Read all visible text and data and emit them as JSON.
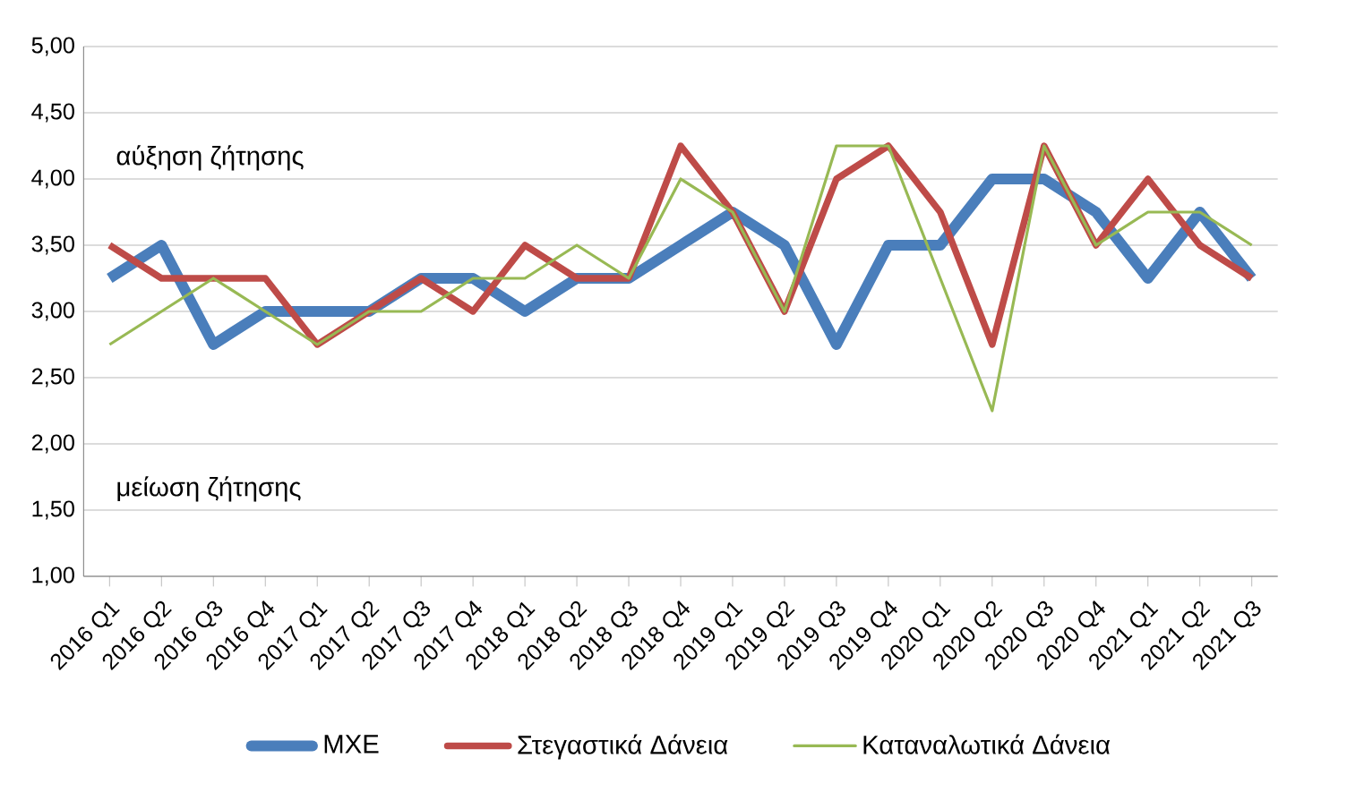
{
  "chart_data": {
    "type": "line",
    "categories": [
      "2016 Q1",
      "2016 Q2",
      "2016 Q3",
      "2016 Q4",
      "2017 Q1",
      "2017 Q2",
      "2017 Q3",
      "2017 Q4",
      "2018 Q1",
      "2018 Q2",
      "2018 Q3",
      "2018 Q4",
      "2019 Q1",
      "2019 Q2",
      "2019 Q3",
      "2019 Q4",
      "2020 Q1",
      "2020 Q2",
      "2020 Q3",
      "2020 Q4",
      "2021 Q1",
      "2021 Q2",
      "2021 Q3"
    ],
    "series": [
      {
        "name": "ΜΧΕ",
        "color": "#4a7ebb",
        "values": [
          3.25,
          3.5,
          2.75,
          3,
          3,
          3,
          3.25,
          3.25,
          3,
          3.25,
          3.25,
          3.5,
          3.75,
          3.5,
          2.75,
          3.5,
          3.5,
          4,
          4,
          3.75,
          3.25,
          3.75,
          3.25
        ]
      },
      {
        "name": "Στεγαστικά Δάνεια",
        "color": "#be4b48",
        "values": [
          3.5,
          3.25,
          3.25,
          3.25,
          2.75,
          3,
          3.25,
          3,
          3.5,
          3.25,
          3.25,
          4.25,
          3.75,
          3,
          4,
          4.25,
          3.75,
          2.75,
          4.25,
          3.5,
          4,
          3.5,
          3.25
        ]
      },
      {
        "name": "Καταναλωτικά Δάνεια",
        "color": "#98b954",
        "values": [
          2.75,
          3,
          3.25,
          3,
          2.75,
          3,
          3,
          3.25,
          3.25,
          3.5,
          3.25,
          4,
          3.75,
          3,
          4.25,
          4.25,
          3.25,
          2.25,
          4.25,
          3.5,
          3.75,
          3.75,
          3.5
        ]
      }
    ],
    "ylim": [
      1,
      5
    ],
    "yticks": [
      {
        "value": 1,
        "label": "1,00"
      },
      {
        "value": 1.5,
        "label": "1,50"
      },
      {
        "value": 2,
        "label": "2,00"
      },
      {
        "value": 2.5,
        "label": "2,50"
      },
      {
        "value": 3,
        "label": "3,00"
      },
      {
        "value": 3.5,
        "label": "3,50"
      },
      {
        "value": 4,
        "label": "4,00"
      },
      {
        "value": 4.5,
        "label": "4,50"
      },
      {
        "value": 5,
        "label": "5,00"
      }
    ],
    "annotations": [
      "αύξηση ζήτησης",
      "μείωση ζήτησης"
    ],
    "grid": "y",
    "legend": "bottom",
    "marker": "none",
    "line_style": "solid"
  }
}
